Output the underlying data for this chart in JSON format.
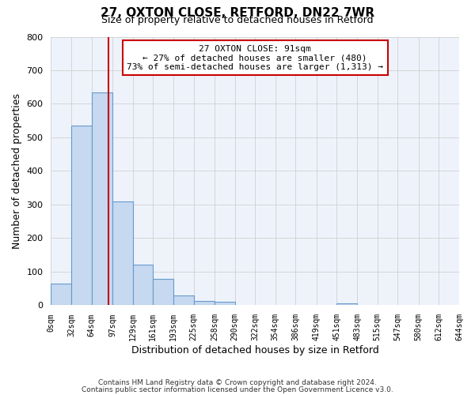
{
  "title": "27, OXTON CLOSE, RETFORD, DN22 7WR",
  "subtitle": "Size of property relative to detached houses in Retford",
  "xlabel": "Distribution of detached houses by size in Retford",
  "ylabel": "Number of detached properties",
  "footer_lines": [
    "Contains HM Land Registry data © Crown copyright and database right 2024.",
    "Contains public sector information licensed under the Open Government Licence v3.0."
  ],
  "bin_edges": [
    0,
    32,
    64,
    97,
    129,
    161,
    193,
    225,
    258,
    290,
    322,
    354,
    386,
    419,
    451,
    483,
    515,
    547,
    580,
    612,
    644
  ],
  "bin_labels": [
    "0sqm",
    "32sqm",
    "64sqm",
    "97sqm",
    "129sqm",
    "161sqm",
    "193sqm",
    "225sqm",
    "258sqm",
    "290sqm",
    "322sqm",
    "354sqm",
    "386sqm",
    "419sqm",
    "451sqm",
    "483sqm",
    "515sqm",
    "547sqm",
    "580sqm",
    "612sqm",
    "644sqm"
  ],
  "bar_heights": [
    65,
    535,
    635,
    310,
    120,
    78,
    30,
    13,
    10,
    0,
    0,
    0,
    0,
    0,
    5,
    0,
    0,
    0,
    0,
    0
  ],
  "bar_color": "#c6d9f1",
  "bar_edge_color": "#6699cc",
  "ylim": [
    0,
    800
  ],
  "yticks": [
    0,
    100,
    200,
    300,
    400,
    500,
    600,
    700,
    800
  ],
  "vline_x": 91,
  "vline_color": "#cc0000",
  "annotation_title": "27 OXTON CLOSE: 91sqm",
  "annotation_line1": "← 27% of detached houses are smaller (480)",
  "annotation_line2": "73% of semi-detached houses are larger (1,313) →",
  "annotation_box_facecolor": "#ffffff",
  "annotation_box_edgecolor": "#cc0000",
  "grid_color": "#d0d0d0",
  "bg_color": "#ffffff",
  "plot_bg_color": "#eef3fb"
}
